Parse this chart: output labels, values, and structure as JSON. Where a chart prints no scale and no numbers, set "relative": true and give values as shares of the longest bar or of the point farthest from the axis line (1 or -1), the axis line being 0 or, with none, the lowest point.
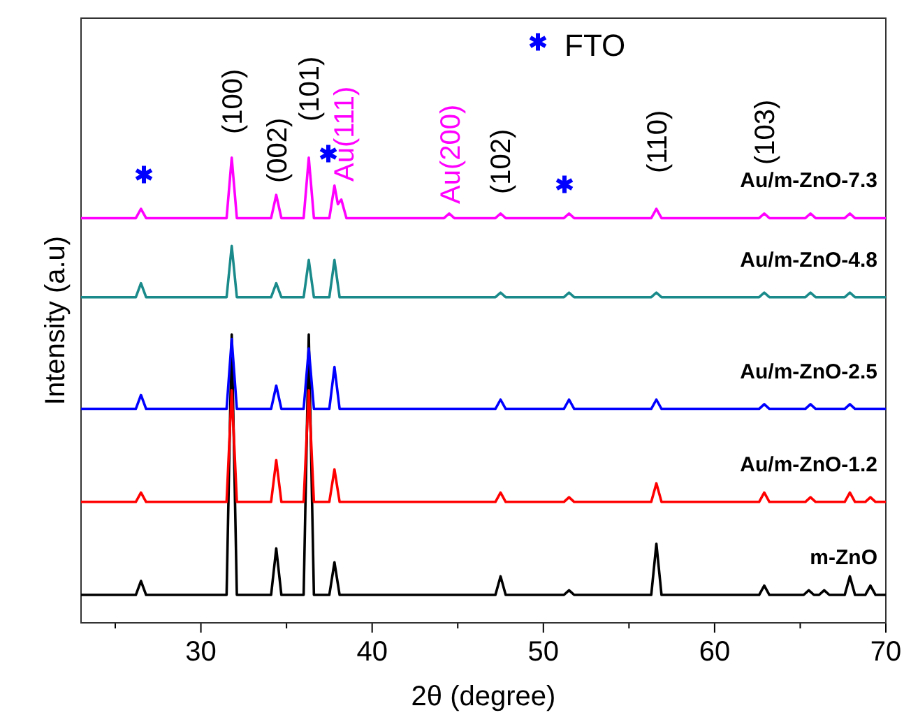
{
  "chart_data": {
    "type": "line",
    "relative": true,
    "xlabel": "2θ (degree)",
    "ylabel": "Intensity (a.u)",
    "xlim": [
      23,
      70
    ],
    "xticks": [
      {
        "value": 25,
        "label": null
      },
      30,
      {
        "value": 35,
        "label": null
      },
      40,
      {
        "value": 45,
        "label": null
      },
      50,
      {
        "value": 55,
        "label": null
      },
      60,
      {
        "value": 65,
        "label": null
      },
      70
    ],
    "grid": false,
    "line_style": "solid",
    "series": [
      {
        "name": "m-ZnO",
        "color": "#000000",
        "x": [
          23,
          26.2,
          26.5,
          26.8,
          31.5,
          31.8,
          32.1,
          34.1,
          34.4,
          34.7,
          36,
          36.3,
          36.6,
          37.5,
          37.8,
          38.1,
          47.2,
          47.5,
          47.8,
          51.2,
          51.5,
          51.8,
          56.3,
          56.6,
          56.9,
          61.4,
          61.7,
          62,
          62.6,
          62.9,
          63.2,
          65.2,
          65.5,
          65.8,
          66.1,
          66.4,
          66.7,
          67.6,
          67.9,
          68.2,
          68.8,
          69.1,
          69.4,
          70
        ],
        "values": [
          0.06,
          0.06,
          0.09,
          0.06,
          0.06,
          0.62,
          0.06,
          0.06,
          0.16,
          0.06,
          0.06,
          0.62,
          0.06,
          0.06,
          0.13,
          0.06,
          0.06,
          0.1,
          0.06,
          0.06,
          0.07,
          0.06,
          0.06,
          0.17,
          0.06,
          0.06,
          0.06,
          0.06,
          0.06,
          0.08,
          0.06,
          0.06,
          0.07,
          0.06,
          0.06,
          0.07,
          0.06,
          0.06,
          0.1,
          0.06,
          0.06,
          0.08,
          0.06,
          0.06
        ]
      },
      {
        "name": "Au/m-ZnO-1.2",
        "color": "#ff0000",
        "x": [
          23,
          26.2,
          26.5,
          26.8,
          31.5,
          31.8,
          32.1,
          34.1,
          34.4,
          34.7,
          36,
          36.3,
          36.6,
          37.5,
          37.8,
          38.1,
          47.2,
          47.5,
          47.8,
          51.2,
          51.5,
          51.8,
          56.3,
          56.6,
          56.9,
          62.6,
          62.9,
          63.2,
          65.3,
          65.6,
          65.9,
          67.6,
          67.9,
          68.2,
          68.8,
          69.1,
          69.4,
          70
        ],
        "values": [
          0.26,
          0.26,
          0.28,
          0.26,
          0.26,
          0.5,
          0.26,
          0.26,
          0.35,
          0.26,
          0.26,
          0.5,
          0.26,
          0.26,
          0.33,
          0.26,
          0.26,
          0.28,
          0.26,
          0.26,
          0.27,
          0.26,
          0.26,
          0.3,
          0.26,
          0.26,
          0.28,
          0.26,
          0.26,
          0.27,
          0.26,
          0.26,
          0.28,
          0.26,
          0.26,
          0.27,
          0.26,
          0.26
        ]
      },
      {
        "name": "Au/m-ZnO-2.5",
        "color": "#0000ff",
        "x": [
          23,
          26.2,
          26.5,
          26.8,
          31.5,
          31.8,
          32.1,
          34.1,
          34.4,
          34.7,
          36,
          36.3,
          36.6,
          37.5,
          37.8,
          38.1,
          47.2,
          47.5,
          47.8,
          51.2,
          51.5,
          51.8,
          56.3,
          56.6,
          56.9,
          62.6,
          62.9,
          63.2,
          65.3,
          65.6,
          65.9,
          67.6,
          67.9,
          68.2,
          70
        ],
        "values": [
          0.46,
          0.46,
          0.49,
          0.46,
          0.46,
          0.61,
          0.46,
          0.46,
          0.51,
          0.46,
          0.46,
          0.59,
          0.46,
          0.46,
          0.55,
          0.46,
          0.46,
          0.48,
          0.46,
          0.46,
          0.48,
          0.46,
          0.46,
          0.48,
          0.46,
          0.46,
          0.47,
          0.46,
          0.46,
          0.47,
          0.46,
          0.46,
          0.47,
          0.46,
          0.46
        ]
      },
      {
        "name": "Au/m-ZnO-4.8",
        "color": "#1a8a8a",
        "x": [
          23,
          26.2,
          26.5,
          26.8,
          31.5,
          31.8,
          32.1,
          34.1,
          34.4,
          34.7,
          36,
          36.3,
          36.6,
          37.5,
          37.8,
          38.1,
          47.2,
          47.5,
          47.8,
          51.2,
          51.5,
          51.8,
          56.3,
          56.6,
          56.9,
          62.6,
          62.9,
          63.2,
          65.3,
          65.6,
          65.9,
          67.6,
          67.9,
          68.2,
          70
        ],
        "values": [
          0.7,
          0.7,
          0.73,
          0.7,
          0.7,
          0.81,
          0.7,
          0.7,
          0.73,
          0.7,
          0.7,
          0.78,
          0.7,
          0.7,
          0.78,
          0.7,
          0.7,
          0.71,
          0.7,
          0.7,
          0.71,
          0.7,
          0.7,
          0.71,
          0.7,
          0.7,
          0.71,
          0.7,
          0.7,
          0.71,
          0.7,
          0.7,
          0.71,
          0.7,
          0.7
        ]
      },
      {
        "name": "Au/m-ZnO-7.3",
        "color": "#ff00ff",
        "x": [
          23,
          26.2,
          26.5,
          26.8,
          31.5,
          31.8,
          32.1,
          34.1,
          34.4,
          34.7,
          36,
          36.3,
          36.6,
          37.5,
          37.8,
          38,
          38.2,
          38.5,
          44.2,
          44.5,
          44.8,
          47.2,
          47.5,
          47.8,
          51.2,
          51.5,
          51.8,
          56.3,
          56.6,
          56.9,
          62.6,
          62.9,
          63.2,
          65.3,
          65.6,
          65.9,
          67.6,
          67.9,
          68.2,
          70
        ],
        "values": [
          0.87,
          0.87,
          0.89,
          0.87,
          0.87,
          1.0,
          0.87,
          0.87,
          0.92,
          0.87,
          0.87,
          1.0,
          0.87,
          0.87,
          0.94,
          0.9,
          0.91,
          0.87,
          0.87,
          0.88,
          0.87,
          0.87,
          0.88,
          0.87,
          0.87,
          0.88,
          0.87,
          0.87,
          0.89,
          0.87,
          0.87,
          0.88,
          0.87,
          0.87,
          0.88,
          0.87,
          0.87,
          0.88,
          0.87,
          0.87
        ]
      }
    ],
    "annotations": [
      "(100)",
      "(002)",
      "(101)",
      "Au(111)",
      "Au(200)",
      "(102)",
      "(110)",
      "(103)",
      "FTO"
    ]
  }
}
